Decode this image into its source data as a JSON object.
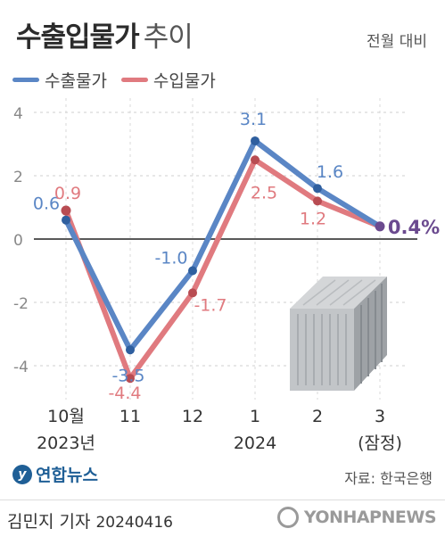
{
  "header": {
    "title_bold": "수출입물가",
    "title_light": "추이",
    "subtitle": "전월 대비"
  },
  "footer": {
    "logo_text": "연합뉴스",
    "source": "자료: 한국은행",
    "byline": "김민지 기자",
    "date": "20240416",
    "watermark": "YONHAPNEWS"
  },
  "chart_data": {
    "type": "line",
    "categories": [
      "10월",
      "11",
      "12",
      "1",
      "2",
      "3"
    ],
    "category_sublabels": [
      "2023년",
      "",
      "",
      "2024",
      "",
      "(잠정)"
    ],
    "series": [
      {
        "name": "수출물가",
        "values": [
          0.6,
          -3.5,
          -1.0,
          3.1,
          1.6,
          0.4
        ],
        "labels": [
          "0.6",
          "-3.5",
          "-1.0",
          "3.1",
          "1.6",
          "0.4%"
        ],
        "color": "#5a86c5"
      },
      {
        "name": "수입물가",
        "values": [
          0.9,
          -4.4,
          -1.7,
          2.5,
          1.2,
          0.4
        ],
        "labels": [
          "0.9",
          "-4.4",
          "-1.7",
          "2.5",
          "1.2",
          ""
        ],
        "color": "#e07a7f"
      }
    ],
    "yticks": [
      "4",
      "2",
      "0",
      "-2",
      "-4"
    ],
    "ylim": [
      -5,
      4
    ],
    "grid": true,
    "final_point_color": "#6b4a8f",
    "legend_position": "top-left"
  }
}
